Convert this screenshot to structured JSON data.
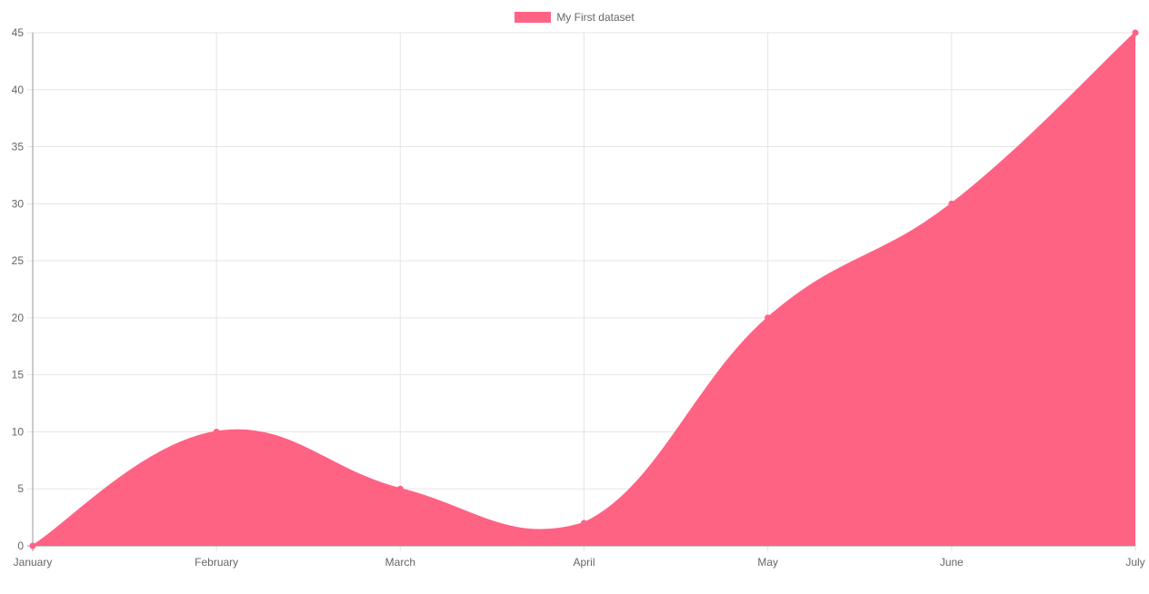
{
  "chart_data": {
    "type": "area",
    "categories": [
      "January",
      "February",
      "March",
      "April",
      "May",
      "June",
      "July"
    ],
    "series": [
      {
        "name": "My First dataset",
        "values": [
          0,
          10,
          5,
          2,
          20,
          30,
          45
        ]
      }
    ],
    "ylim": [
      0,
      45
    ],
    "yticks": [
      "0",
      "5",
      "10",
      "15",
      "20",
      "25",
      "30",
      "35",
      "40",
      "45"
    ],
    "grid": true,
    "legend": "top-center",
    "smooth": true
  },
  "colors": {
    "series": "#ff6384",
    "grid": "#e5e5e5",
    "axis": "#999999",
    "text": "#666666"
  }
}
